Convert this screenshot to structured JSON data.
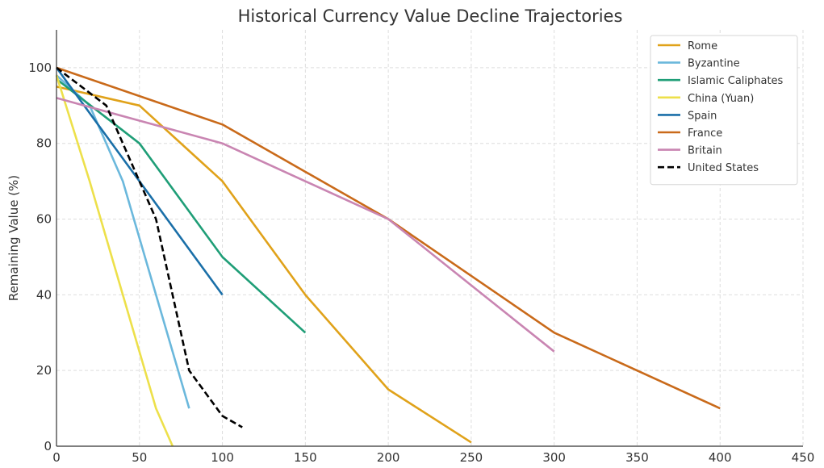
{
  "chart_data": {
    "type": "line",
    "title": "Historical Currency Value Decline Trajectories",
    "xlabel": "",
    "ylabel": "Remaining Value (%)",
    "xlim": [
      0,
      450
    ],
    "ylim": [
      0,
      110
    ],
    "x_ticks": [
      0,
      50,
      100,
      150,
      200,
      250,
      300,
      350,
      400,
      450
    ],
    "y_ticks": [
      0,
      20,
      40,
      60,
      80,
      100
    ],
    "grid": true,
    "legend_position": "top-right",
    "series": [
      {
        "name": "Rome",
        "color": "#E0A21A",
        "dashed": false,
        "x": [
          0,
          50,
          100,
          150,
          200,
          250
        ],
        "y": [
          95,
          90,
          70,
          40,
          15,
          1
        ]
      },
      {
        "name": "Byzantine",
        "color": "#6BB8DC",
        "dashed": false,
        "x": [
          0,
          20,
          40,
          60,
          80
        ],
        "y": [
          98,
          90,
          70,
          40,
          10
        ]
      },
      {
        "name": "Islamic Caliphates",
        "color": "#1F9E77",
        "dashed": false,
        "x": [
          0,
          50,
          100,
          150
        ],
        "y": [
          97,
          80,
          50,
          30
        ]
      },
      {
        "name": "China (Yuan)",
        "color": "#EDE04A",
        "dashed": false,
        "x": [
          0,
          20,
          40,
          60,
          70
        ],
        "y": [
          98,
          70,
          40,
          10,
          0
        ]
      },
      {
        "name": "Spain",
        "color": "#1A6FA8",
        "dashed": false,
        "x": [
          0,
          50,
          100
        ],
        "y": [
          100,
          70,
          40
        ]
      },
      {
        "name": "France",
        "color": "#C96A1A",
        "dashed": false,
        "x": [
          0,
          100,
          200,
          300,
          400
        ],
        "y": [
          100,
          85,
          60,
          30,
          10
        ]
      },
      {
        "name": "Britain",
        "color": "#C985B2",
        "dashed": false,
        "x": [
          0,
          100,
          200,
          300
        ],
        "y": [
          92,
          80,
          60,
          25
        ]
      },
      {
        "name": "United States",
        "color": "#000000",
        "dashed": true,
        "x": [
          0,
          30,
          60,
          80,
          100,
          112
        ],
        "y": [
          100,
          90,
          60,
          20,
          8,
          5
        ]
      }
    ]
  }
}
